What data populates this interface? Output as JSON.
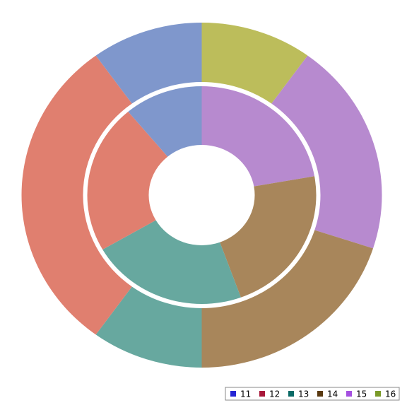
{
  "chart_data": {
    "type": "donut",
    "categories": [
      "11",
      "12",
      "13",
      "14",
      "15",
      "16"
    ],
    "colors": [
      "#7f97cc",
      "#e07f6f",
      "#67a89f",
      "#a8865b",
      "#b78acf",
      "#bcbd5b"
    ],
    "legend_colors": [
      "#2626d4",
      "#a8183a",
      "#0a6a66",
      "#5a3a12",
      "#a550e0",
      "#7a9a28"
    ],
    "rings": [
      {
        "values": [
          1,
          2,
          2,
          2,
          2,
          0
        ]
      },
      {
        "values": [
          1,
          3,
          1,
          2,
          2,
          1
        ]
      }
    ],
    "start_angle": 0,
    "clockwise": true,
    "reverse_order": true,
    "legend": "bottom-right"
  }
}
